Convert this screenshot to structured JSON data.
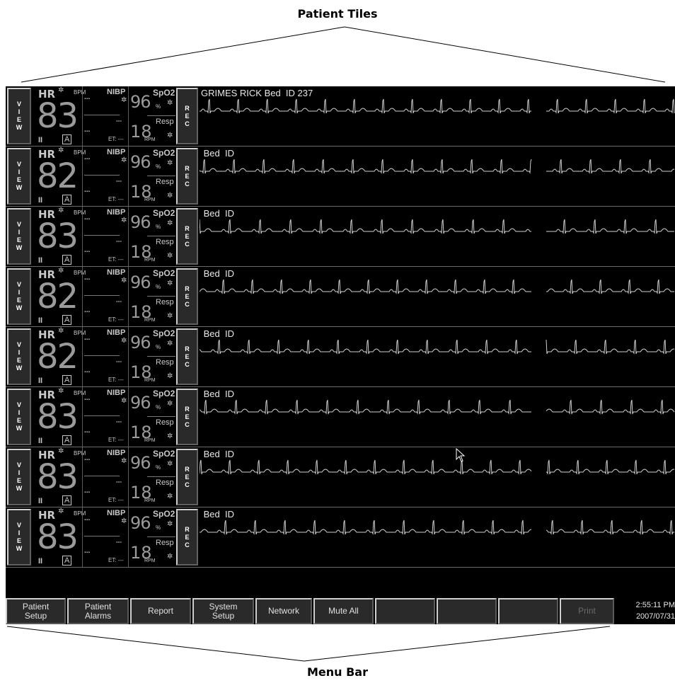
{
  "callouts": {
    "top": "Patient Tiles",
    "bottom": "Menu Bar"
  },
  "tile_labels": {
    "view": [
      "V",
      "I",
      "E",
      "W"
    ],
    "rec": [
      "R",
      "E",
      "C"
    ],
    "hr": "HR",
    "bpm": "BPM",
    "lead": "II",
    "mode": "A",
    "nibp": "NIBP",
    "dots": "...",
    "dashes": "---",
    "et": "ET: ---",
    "spo2": "SpO2",
    "pct": "%",
    "resp": "Resp",
    "rpm": "RPM",
    "bell": "✲"
  },
  "tiles": [
    {
      "name": "GRIMES RICK Bed  ID 237",
      "hr": "83",
      "spo2": "96",
      "resp": "18"
    },
    {
      "name": " Bed  ID",
      "hr": "82",
      "spo2": "96",
      "resp": "18"
    },
    {
      "name": " Bed  ID",
      "hr": "83",
      "spo2": "96",
      "resp": "18"
    },
    {
      "name": " Bed  ID",
      "hr": "82",
      "spo2": "96",
      "resp": "18"
    },
    {
      "name": " Bed  ID",
      "hr": "82",
      "spo2": "96",
      "resp": "18"
    },
    {
      "name": " Bed  ID",
      "hr": "83",
      "spo2": "96",
      "resp": "18"
    },
    {
      "name": " Bed  ID",
      "hr": "83",
      "spo2": "96",
      "resp": "18"
    },
    {
      "name": " Bed  ID",
      "hr": "83",
      "spo2": "96",
      "resp": "18"
    }
  ],
  "menu": {
    "buttons": [
      {
        "label1": "Patient",
        "label2": "Setup",
        "disabled": false
      },
      {
        "label1": "Patient",
        "label2": "Alarms",
        "disabled": false
      },
      {
        "label1": "Report",
        "label2": "",
        "disabled": false
      },
      {
        "label1": "System",
        "label2": "Setup",
        "disabled": false
      },
      {
        "label1": "Network",
        "label2": "",
        "disabled": false
      },
      {
        "label1": "Mute All",
        "label2": "",
        "disabled": false
      },
      {
        "label1": "",
        "label2": "",
        "disabled": false
      },
      {
        "label1": "",
        "label2": "",
        "disabled": false
      },
      {
        "label1": "",
        "label2": "",
        "disabled": false
      },
      {
        "label1": "Print",
        "label2": "",
        "disabled": true
      }
    ],
    "time": "2:55:11 PM",
    "date": "2007/07/31"
  },
  "colors": {
    "background": "#000000",
    "text": "#c8c8c8",
    "waveform": "#d0d0d0"
  }
}
